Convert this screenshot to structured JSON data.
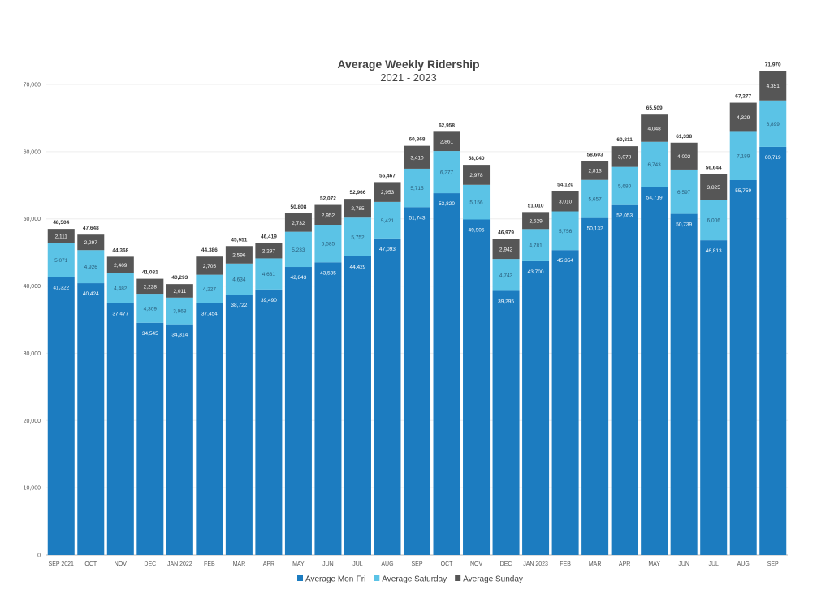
{
  "chart_data": {
    "type": "bar",
    "stacked": true,
    "title": "Average Weekly Ridership",
    "subtitle": "2021 - 2023",
    "xlabel": "",
    "ylabel": "",
    "ylim": [
      0,
      70000
    ],
    "yticks": [
      0,
      10000,
      20000,
      30000,
      40000,
      50000,
      60000,
      70000
    ],
    "ytick_labels": [
      "0",
      "10,000",
      "20,000",
      "30,000",
      "40,000",
      "50,000",
      "60,000",
      "70,000"
    ],
    "grid": true,
    "legend_position": "bottom",
    "categories": [
      "SEP 2021",
      "OCT",
      "NOV",
      "DEC",
      "JAN 2022",
      "FEB",
      "MAR",
      "APR",
      "MAY",
      "JUN",
      "JUL",
      "AUG",
      "SEP",
      "OCT",
      "NOV",
      "DEC",
      "JAN 2023",
      "FEB",
      "MAR",
      "APR",
      "MAY",
      "JUN",
      "JUL",
      "AUG",
      "SEP"
    ],
    "series": [
      {
        "name": "Average Mon-Fri",
        "color": "#1c7cc0",
        "values": [
          41322,
          40424,
          37477,
          34545,
          34314,
          37454,
          38722,
          39490,
          42843,
          43535,
          44429,
          47093,
          51743,
          53820,
          49905,
          39295,
          43700,
          45354,
          50132,
          52053,
          54719,
          50739,
          46813,
          55759,
          60719
        ]
      },
      {
        "name": "Average Saturday",
        "color": "#5bc3e6",
        "values": [
          5071,
          4926,
          4482,
          4309,
          3968,
          4227,
          4634,
          4631,
          5233,
          5585,
          5752,
          5421,
          5715,
          6277,
          5156,
          4743,
          4781,
          5756,
          5657,
          5680,
          6743,
          6597,
          6006,
          7189,
          6899
        ]
      },
      {
        "name": "Average Sunday",
        "color": "#565656",
        "values": [
          2111,
          2297,
          2409,
          2228,
          2011,
          2705,
          2596,
          2297,
          2732,
          2952,
          2785,
          2953,
          3410,
          2861,
          2978,
          2942,
          2529,
          3010,
          2813,
          3078,
          4048,
          4002,
          3825,
          4329,
          4351
        ]
      }
    ],
    "totals": [
      48504,
      47648,
      44368,
      41081,
      40293,
      44386,
      45951,
      46419,
      50808,
      52072,
      52966,
      55467,
      60868,
      62958,
      58040,
      46979,
      51010,
      54120,
      58603,
      60811,
      65509,
      61338,
      56644,
      67277,
      71970
    ]
  }
}
